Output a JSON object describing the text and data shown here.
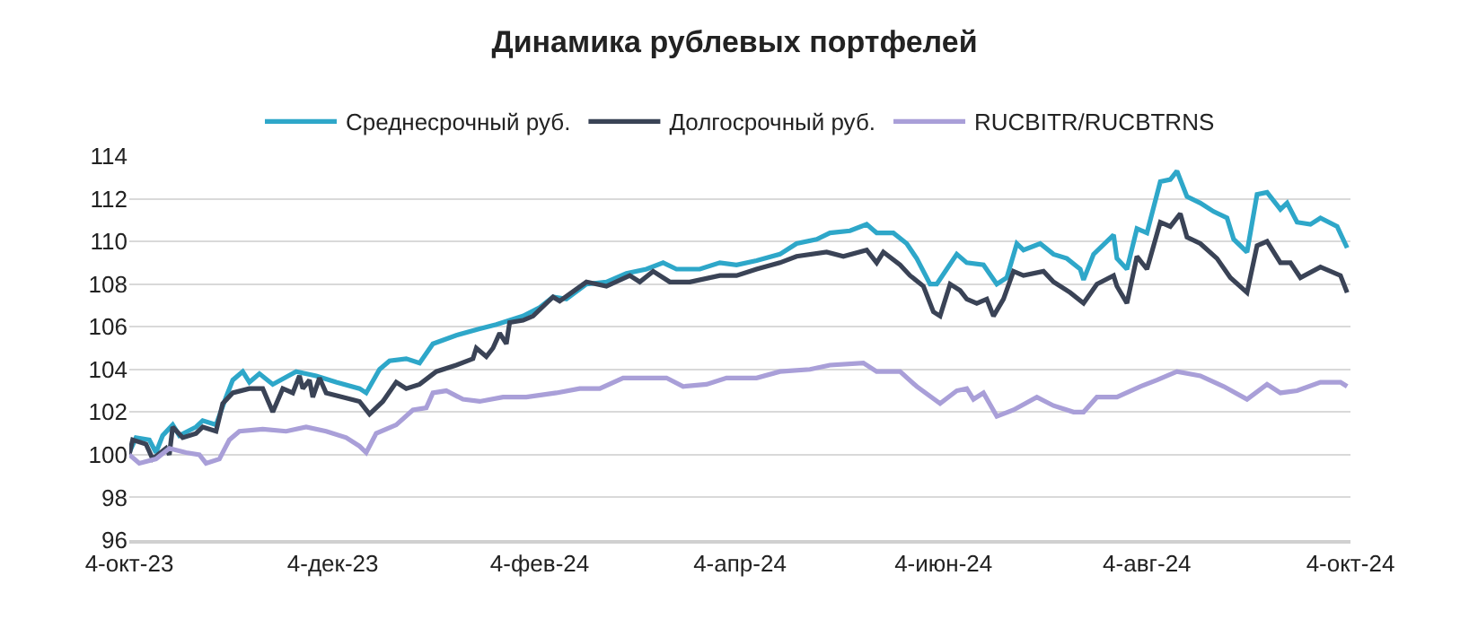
{
  "chart_data": {
    "type": "line",
    "title": "Динамика рублевых портфелей",
    "xlim": [
      "2023-10-04",
      "2024-10-04"
    ],
    "xticks": [
      {
        "value": "2023-10-04",
        "label": "4-окт-23"
      },
      {
        "value": "2023-12-04",
        "label": "4-дек-23"
      },
      {
        "value": "2024-02-04",
        "label": "4-фев-24"
      },
      {
        "value": "2024-04-04",
        "label": "4-апр-24"
      },
      {
        "value": "2024-06-04",
        "label": "4-июн-24"
      },
      {
        "value": "2024-08-04",
        "label": "4-авг-24"
      },
      {
        "value": "2024-10-04",
        "label": "4-окт-24"
      }
    ],
    "ylim": [
      96,
      114
    ],
    "yticks": [
      96,
      98,
      100,
      102,
      104,
      106,
      108,
      110,
      112,
      114
    ],
    "grid": "y",
    "legend": "top",
    "marker": "none",
    "line_style": "solid",
    "series": [
      {
        "name": "Среднесрочный руб.",
        "color": "#2ea7c9",
        "x": [
          "2023-10-04",
          "2023-10-06",
          "2023-10-10",
          "2023-10-12",
          "2023-10-14",
          "2023-10-17",
          "2023-10-19",
          "2023-10-24",
          "2023-10-26",
          "2023-10-30",
          "2023-11-02",
          "2023-11-04",
          "2023-11-07",
          "2023-11-09",
          "2023-11-12",
          "2023-11-16",
          "2023-11-23",
          "2023-11-29",
          "2023-12-05",
          "2023-12-12",
          "2023-12-14",
          "2023-12-18",
          "2023-12-21",
          "2023-12-26",
          "2023-12-30",
          "2024-01-03",
          "2024-01-10",
          "2024-01-17",
          "2024-01-22",
          "2024-01-30",
          "2024-02-04",
          "2024-02-08",
          "2024-02-12",
          "2024-02-18",
          "2024-02-24",
          "2024-03-01",
          "2024-03-07",
          "2024-03-12",
          "2024-03-16",
          "2024-03-23",
          "2024-03-29",
          "2024-04-03",
          "2024-04-09",
          "2024-04-16",
          "2024-04-21",
          "2024-04-27",
          "2024-05-01",
          "2024-05-07",
          "2024-05-12",
          "2024-05-15",
          "2024-05-20",
          "2024-05-24",
          "2024-05-27",
          "2024-05-31",
          "2024-06-02",
          "2024-06-05",
          "2024-06-08",
          "2024-06-11",
          "2024-06-16",
          "2024-06-20",
          "2024-06-23",
          "2024-06-26",
          "2024-06-28",
          "2024-07-03",
          "2024-07-07",
          "2024-07-11",
          "2024-07-15",
          "2024-07-16",
          "2024-07-19",
          "2024-07-25",
          "2024-07-26",
          "2024-07-29",
          "2024-08-01",
          "2024-08-04",
          "2024-08-08",
          "2024-08-11",
          "2024-08-13",
          "2024-08-16",
          "2024-08-20",
          "2024-08-24",
          "2024-08-28",
          "2024-08-30",
          "2024-09-03",
          "2024-09-06",
          "2024-09-09",
          "2024-09-13",
          "2024-09-15",
          "2024-09-18",
          "2024-09-22",
          "2024-09-25",
          "2024-09-30",
          "2024-10-03"
        ],
        "values": [
          100.1,
          100.8,
          100.7,
          100.1,
          100.9,
          101.4,
          100.9,
          101.3,
          101.6,
          101.4,
          102.7,
          103.5,
          103.9,
          103.4,
          103.8,
          103.3,
          103.9,
          103.7,
          103.4,
          103.1,
          102.9,
          104.0,
          104.4,
          104.5,
          104.3,
          105.2,
          105.6,
          105.9,
          106.1,
          106.5,
          106.9,
          107.4,
          107.3,
          108.0,
          108.1,
          108.5,
          108.7,
          109.0,
          108.7,
          108.7,
          109.0,
          108.9,
          109.1,
          109.4,
          109.9,
          110.1,
          110.4,
          110.5,
          110.8,
          110.4,
          110.4,
          109.9,
          109.2,
          108.0,
          108.0,
          108.7,
          109.4,
          109.0,
          108.9,
          108.0,
          108.3,
          109.9,
          109.6,
          109.9,
          109.4,
          109.2,
          108.7,
          108.2,
          109.4,
          110.3,
          109.2,
          108.7,
          110.6,
          110.4,
          112.8,
          112.9,
          113.3,
          112.1,
          111.8,
          111.4,
          111.1,
          110.1,
          109.5,
          112.2,
          112.3,
          111.5,
          111.8,
          110.9,
          110.8,
          111.1,
          110.7,
          109.7
        ]
      },
      {
        "name": "Долгосрочный руб.",
        "color": "#3a4356",
        "x": [
          "2023-10-04",
          "2023-10-05",
          "2023-10-09",
          "2023-10-11",
          "2023-10-15",
          "2023-10-16",
          "2023-10-17",
          "2023-10-20",
          "2023-10-24",
          "2023-10-26",
          "2023-10-30",
          "2023-11-01",
          "2023-11-04",
          "2023-11-09",
          "2023-11-13",
          "2023-11-16",
          "2023-11-19",
          "2023-11-22",
          "2023-11-24",
          "2023-11-25",
          "2023-11-27",
          "2023-11-28",
          "2023-11-30",
          "2023-12-02",
          "2023-12-07",
          "2023-12-12",
          "2023-12-15",
          "2023-12-19",
          "2023-12-23",
          "2023-12-26",
          "2023-12-30",
          "2024-01-04",
          "2024-01-10",
          "2024-01-15",
          "2024-01-16",
          "2024-01-19",
          "2024-01-21",
          "2024-01-23",
          "2024-01-25",
          "2024-01-26",
          "2024-01-30",
          "2024-02-02",
          "2024-02-08",
          "2024-02-10",
          "2024-02-18",
          "2024-02-24",
          "2024-03-02",
          "2024-03-05",
          "2024-03-09",
          "2024-03-14",
          "2024-03-20",
          "2024-03-29",
          "2024-04-03",
          "2024-04-09",
          "2024-04-16",
          "2024-04-21",
          "2024-04-30",
          "2024-05-05",
          "2024-05-12",
          "2024-05-15",
          "2024-05-17",
          "2024-05-22",
          "2024-05-25",
          "2024-05-29",
          "2024-06-01",
          "2024-06-03",
          "2024-06-06",
          "2024-06-09",
          "2024-06-11",
          "2024-06-14",
          "2024-06-17",
          "2024-06-19",
          "2024-06-22",
          "2024-06-25",
          "2024-06-28",
          "2024-07-04",
          "2024-07-07",
          "2024-07-12",
          "2024-07-16",
          "2024-07-20",
          "2024-07-25",
          "2024-07-26",
          "2024-07-29",
          "2024-08-01",
          "2024-08-04",
          "2024-08-08",
          "2024-08-11",
          "2024-08-14",
          "2024-08-16",
          "2024-08-20",
          "2024-08-25",
          "2024-08-29",
          "2024-09-03",
          "2024-09-06",
          "2024-09-09",
          "2024-09-13",
          "2024-09-16",
          "2024-09-19",
          "2024-09-25",
          "2024-10-01",
          "2024-10-03"
        ],
        "values": [
          100.0,
          100.7,
          100.5,
          99.8,
          100.3,
          100.0,
          101.3,
          100.8,
          101.0,
          101.3,
          101.1,
          102.4,
          102.9,
          103.1,
          103.1,
          102.0,
          103.1,
          102.9,
          103.7,
          103.1,
          103.5,
          102.7,
          103.6,
          102.9,
          102.7,
          102.5,
          101.9,
          102.5,
          103.4,
          103.1,
          103.3,
          103.9,
          104.2,
          104.5,
          105.0,
          104.6,
          105.0,
          105.7,
          105.2,
          106.2,
          106.3,
          106.5,
          107.4,
          107.2,
          108.1,
          107.9,
          108.4,
          108.1,
          108.6,
          108.1,
          108.1,
          108.4,
          108.4,
          108.7,
          109.0,
          109.3,
          109.5,
          109.3,
          109.6,
          109.0,
          109.5,
          108.9,
          108.4,
          107.9,
          106.7,
          106.5,
          108.0,
          107.7,
          107.3,
          107.1,
          107.3,
          106.5,
          107.3,
          108.6,
          108.4,
          108.6,
          108.1,
          107.6,
          107.1,
          108.0,
          108.4,
          107.9,
          107.1,
          109.3,
          108.7,
          110.9,
          110.7,
          111.3,
          110.2,
          109.9,
          109.2,
          108.3,
          107.6,
          109.8,
          110.0,
          109.0,
          109.0,
          108.3,
          108.8,
          108.4,
          107.6
        ]
      },
      {
        "name": "RUCBITR/RUCBTRNS",
        "color": "#a99fd8",
        "x": [
          "2023-10-04",
          "2023-10-07",
          "2023-10-12",
          "2023-10-16",
          "2023-10-21",
          "2023-10-25",
          "2023-10-27",
          "2023-10-31",
          "2023-11-03",
          "2023-11-06",
          "2023-11-13",
          "2023-11-20",
          "2023-11-26",
          "2023-12-02",
          "2023-12-08",
          "2023-12-12",
          "2023-12-14",
          "2023-12-17",
          "2023-12-23",
          "2023-12-28",
          "2024-01-01",
          "2024-01-03",
          "2024-01-07",
          "2024-01-12",
          "2024-01-17",
          "2024-01-24",
          "2024-01-31",
          "2024-02-09",
          "2024-02-16",
          "2024-02-22",
          "2024-02-29",
          "2024-03-07",
          "2024-03-13",
          "2024-03-18",
          "2024-03-25",
          "2024-03-31",
          "2024-04-09",
          "2024-04-16",
          "2024-04-25",
          "2024-05-01",
          "2024-05-11",
          "2024-05-15",
          "2024-05-22",
          "2024-05-27",
          "2024-06-03",
          "2024-06-08",
          "2024-06-11",
          "2024-06-13",
          "2024-06-16",
          "2024-06-20",
          "2024-06-25",
          "2024-07-02",
          "2024-07-07",
          "2024-07-13",
          "2024-07-16",
          "2024-07-20",
          "2024-07-26",
          "2024-08-02",
          "2024-08-07",
          "2024-08-13",
          "2024-08-20",
          "2024-08-27",
          "2024-09-03",
          "2024-09-09",
          "2024-09-13",
          "2024-09-18",
          "2024-09-25",
          "2024-10-01",
          "2024-10-03"
        ],
        "values": [
          100.0,
          99.6,
          99.8,
          100.3,
          100.1,
          100.0,
          99.6,
          99.8,
          100.7,
          101.1,
          101.2,
          101.1,
          101.3,
          101.1,
          100.8,
          100.4,
          100.1,
          101.0,
          101.4,
          102.1,
          102.2,
          102.9,
          103.0,
          102.6,
          102.5,
          102.7,
          102.7,
          102.9,
          103.1,
          103.1,
          103.6,
          103.6,
          103.6,
          103.2,
          103.3,
          103.6,
          103.6,
          103.9,
          104.0,
          104.2,
          104.3,
          103.9,
          103.9,
          103.2,
          102.4,
          103.0,
          103.1,
          102.6,
          102.9,
          101.8,
          102.1,
          102.7,
          102.3,
          102.0,
          102.0,
          102.7,
          102.7,
          103.2,
          103.5,
          103.9,
          103.7,
          103.2,
          102.6,
          103.3,
          102.9,
          103.0,
          103.4,
          103.4,
          103.2
        ]
      }
    ]
  }
}
